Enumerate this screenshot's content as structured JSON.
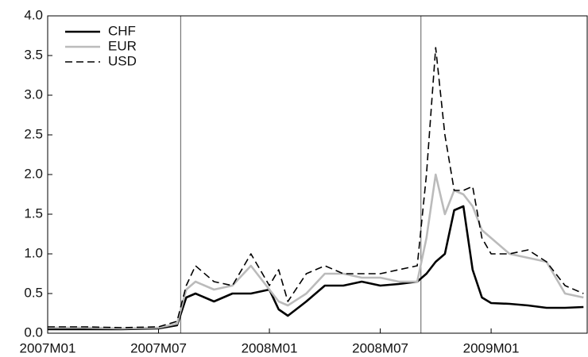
{
  "chart_data": {
    "type": "line",
    "x": [
      0,
      2,
      4,
      6,
      7,
      7.5,
      8,
      9,
      10,
      11,
      12,
      12.5,
      13,
      14,
      15,
      16,
      17,
      18,
      19,
      20,
      20.5,
      21,
      21.5,
      22,
      22.5,
      23,
      23.5,
      24,
      25,
      26,
      27,
      28,
      29
    ],
    "series": [
      {
        "name": "CHF",
        "color": "#000000",
        "style": "solid",
        "values": [
          0.05,
          0.05,
          0.05,
          0.06,
          0.1,
          0.45,
          0.5,
          0.4,
          0.5,
          0.5,
          0.55,
          0.3,
          0.22,
          0.4,
          0.6,
          0.6,
          0.65,
          0.6,
          0.62,
          0.65,
          0.75,
          0.9,
          1.0,
          1.55,
          1.6,
          0.8,
          0.45,
          0.38,
          0.37,
          0.35,
          0.32,
          0.32,
          0.33
        ]
      },
      {
        "name": "EUR",
        "color": "#bbbbbb",
        "style": "solid",
        "values": [
          0.07,
          0.07,
          0.06,
          0.07,
          0.12,
          0.55,
          0.65,
          0.55,
          0.6,
          0.85,
          0.55,
          0.4,
          0.35,
          0.5,
          0.75,
          0.75,
          0.7,
          0.7,
          0.65,
          0.65,
          1.2,
          2.0,
          1.5,
          1.8,
          1.75,
          1.6,
          1.3,
          1.2,
          1.0,
          0.95,
          0.9,
          0.5,
          0.45
        ]
      },
      {
        "name": "USD",
        "color": "#000000",
        "style": "dashed",
        "values": [
          0.08,
          0.08,
          0.07,
          0.08,
          0.15,
          0.6,
          0.85,
          0.65,
          0.6,
          1.0,
          0.6,
          0.8,
          0.4,
          0.75,
          0.85,
          0.75,
          0.75,
          0.75,
          0.8,
          0.85,
          2.0,
          3.6,
          2.5,
          1.8,
          1.8,
          1.85,
          1.2,
          1.0,
          1.0,
          1.05,
          0.9,
          0.6,
          0.5
        ]
      }
    ],
    "vlines": [
      7.2,
      20.2
    ],
    "xlim": [
      0,
      29.2
    ],
    "xticks": [
      {
        "value": 0,
        "label": "2007M01"
      },
      {
        "value": 6,
        "label": "2007M07"
      },
      {
        "value": 12,
        "label": "2008M01"
      },
      {
        "value": 18,
        "label": "2008M07"
      },
      {
        "value": 24,
        "label": "2009M01"
      }
    ],
    "ylim": [
      0,
      4
    ],
    "yticks": [
      {
        "value": 0,
        "label": "0.0"
      },
      0.5,
      {
        "value": 1,
        "label": "1.0"
      },
      1.5,
      {
        "value": 2,
        "label": "2.0"
      },
      2.5,
      {
        "value": 3,
        "label": "3.0"
      },
      3.5,
      {
        "value": 4,
        "label": "4.0"
      }
    ],
    "legend": "upper-left",
    "grid": false
  }
}
